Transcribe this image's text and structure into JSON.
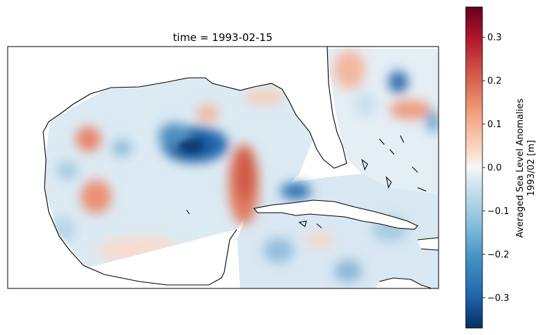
{
  "figure": {
    "title": "time = 1993-02-15"
  },
  "colorbar": {
    "label_line1": "Averaged Sea Level Anomalies",
    "label_line2": "1993/02 [m]",
    "colormap": "RdBu_r",
    "range": [
      -0.37,
      0.37
    ],
    "ticks": [
      "0.3",
      "0.2",
      "0.1",
      "0.0",
      "−0.1",
      "−0.2",
      "−0.3"
    ],
    "tick_values": [
      0.3,
      0.2,
      0.1,
      0.0,
      -0.1,
      -0.2,
      -0.3
    ]
  },
  "map": {
    "region": "Gulf of Mexico and Caribbean",
    "projection": "PlateCarree",
    "coastline_color": "#000000",
    "land_color": "#ffffff",
    "features": [
      {
        "name": "central-gulf-negative-anomaly",
        "value": -0.3
      },
      {
        "name": "loop-current-positive-anomaly",
        "value": 0.22
      },
      {
        "name": "western-gulf-positive-eddy-north",
        "value": 0.18
      },
      {
        "name": "western-gulf-positive-eddy-south",
        "value": 0.16
      },
      {
        "name": "northern-gulf-positive-eddy",
        "value": 0.1
      },
      {
        "name": "yucatan-channel-negative-anomaly",
        "value": -0.22
      },
      {
        "name": "atlantic-negative-eddy",
        "value": -0.2
      },
      {
        "name": "atlantic-positive-anomaly",
        "value": 0.15
      },
      {
        "name": "caribbean-negative-patch",
        "value": -0.12
      }
    ]
  }
}
